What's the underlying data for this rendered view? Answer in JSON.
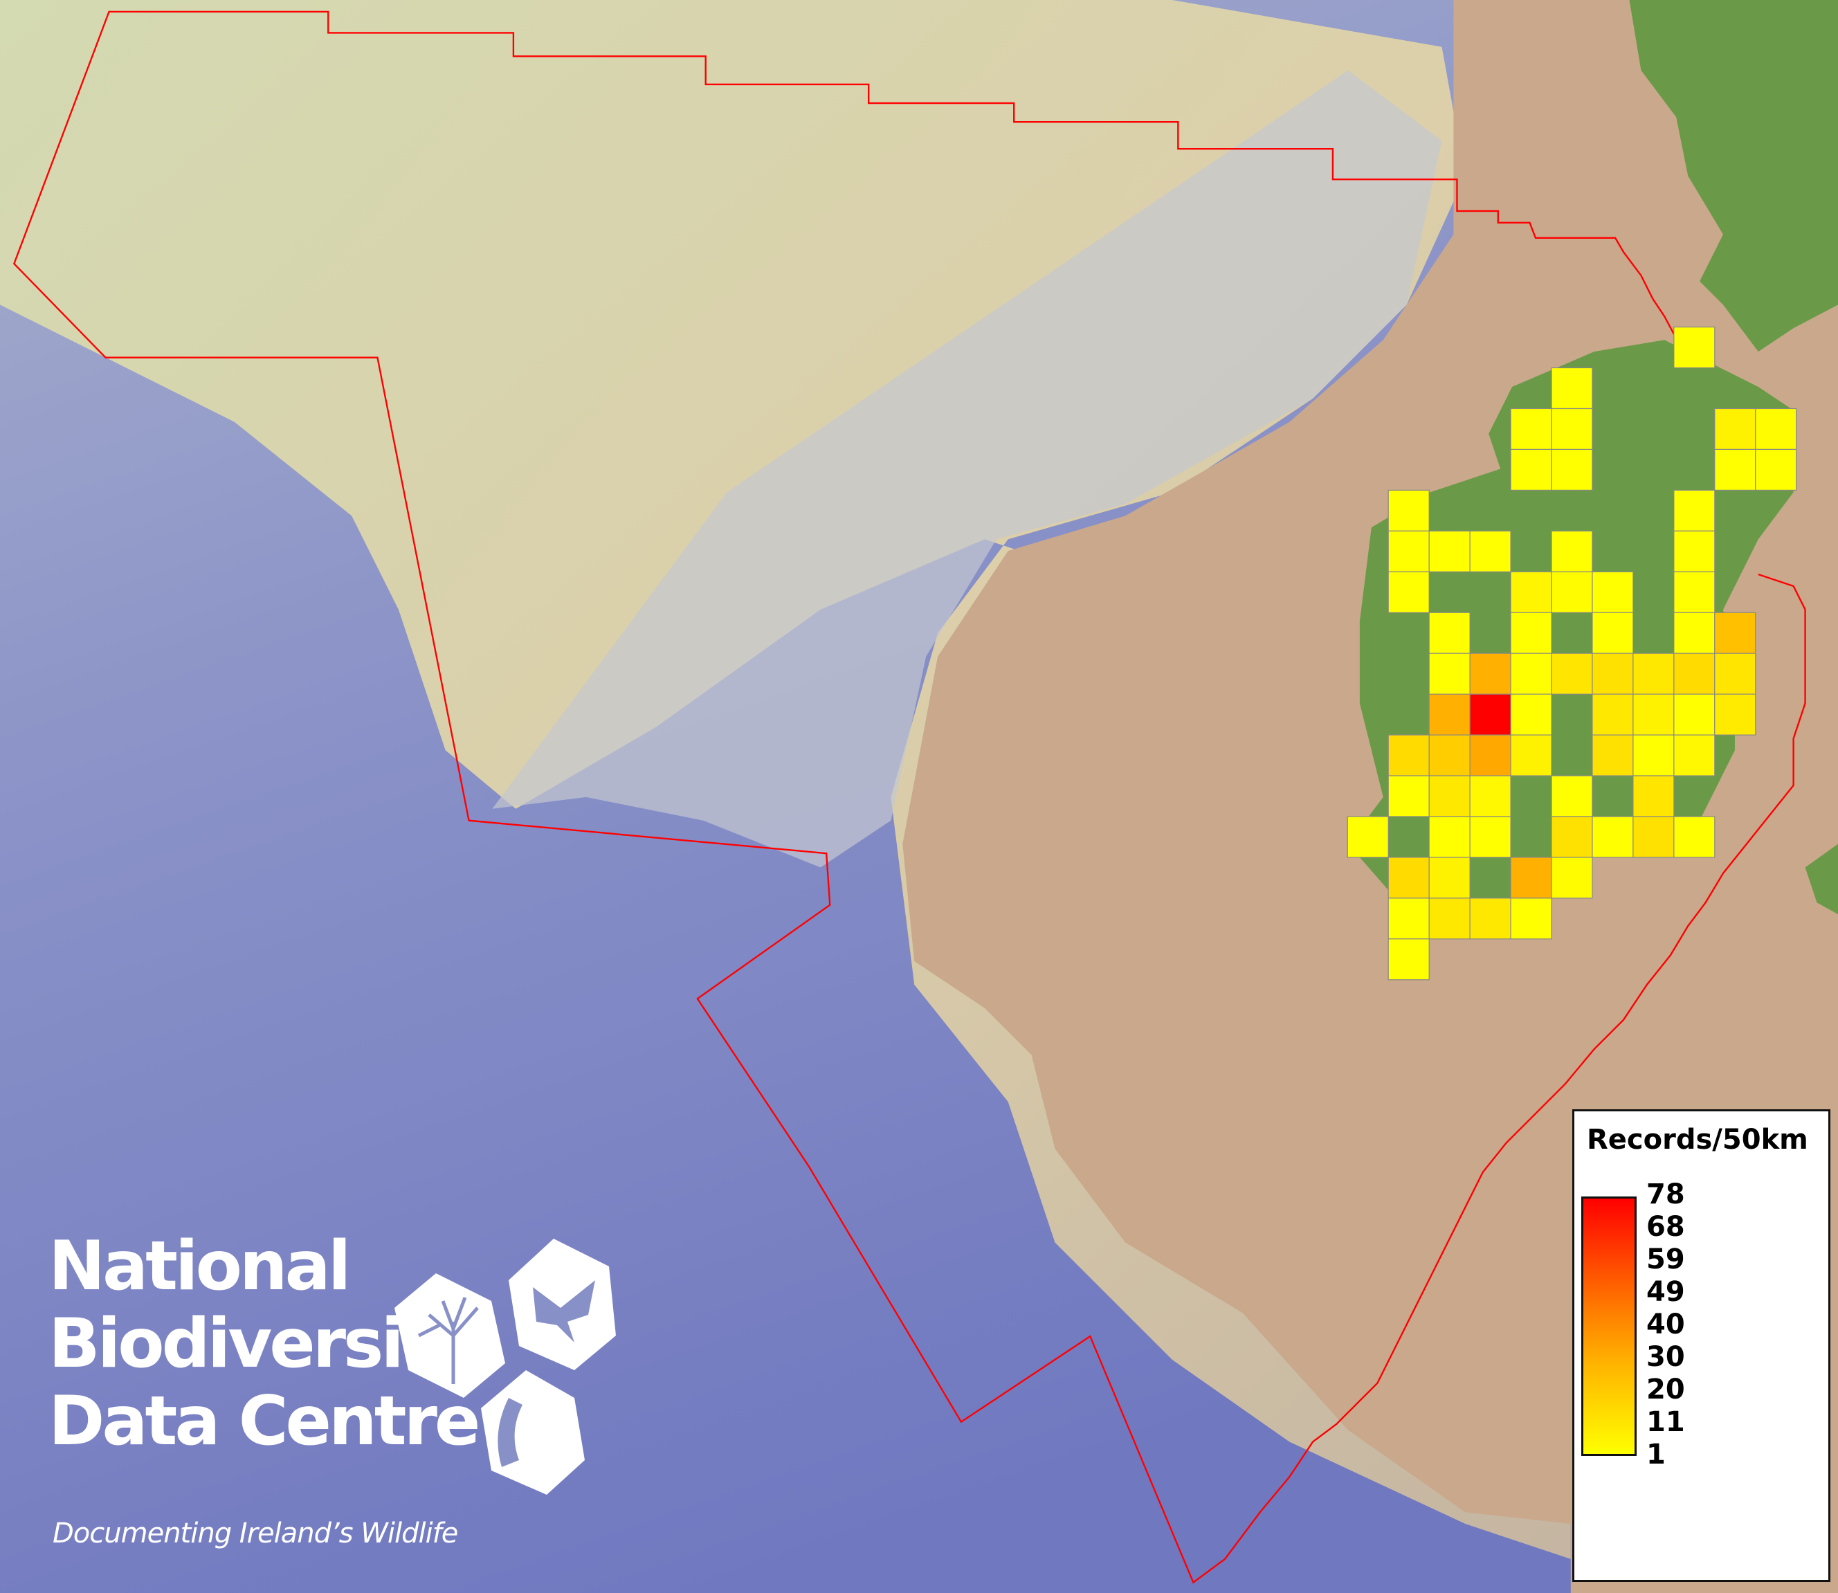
{
  "map": {
    "colors": {
      "ocean": "#7f88c6",
      "shelf": "#d8d8b0",
      "land": "#c9a88c",
      "country": "#6a9a48",
      "boundary": "#ff0000",
      "grid_border": "#888888"
    },
    "grid_cells": [
      [
        0,
        8,
        1
      ],
      [
        1,
        5,
        1
      ],
      [
        2,
        4,
        1
      ],
      [
        2,
        5,
        1
      ],
      [
        2,
        9,
        5
      ],
      [
        2,
        10,
        2
      ],
      [
        3,
        4,
        1
      ],
      [
        3,
        5,
        1
      ],
      [
        3,
        9,
        1
      ],
      [
        3,
        10,
        1
      ],
      [
        4,
        1,
        1
      ],
      [
        4,
        8,
        1
      ],
      [
        5,
        1,
        1
      ],
      [
        5,
        2,
        1
      ],
      [
        5,
        3,
        1
      ],
      [
        5,
        5,
        1
      ],
      [
        5,
        8,
        1
      ],
      [
        6,
        1,
        1
      ],
      [
        6,
        4,
        4
      ],
      [
        6,
        5,
        2
      ],
      [
        6,
        6,
        1
      ],
      [
        6,
        8,
        1
      ],
      [
        7,
        2,
        1
      ],
      [
        7,
        4,
        1
      ],
      [
        7,
        6,
        1
      ],
      [
        7,
        8,
        1
      ],
      [
        7,
        9,
        20
      ],
      [
        8,
        2,
        1
      ],
      [
        8,
        3,
        25
      ],
      [
        8,
        4,
        1
      ],
      [
        8,
        5,
        9
      ],
      [
        8,
        6,
        10
      ],
      [
        8,
        7,
        8
      ],
      [
        8,
        8,
        12
      ],
      [
        8,
        9,
        9
      ],
      [
        9,
        2,
        25
      ],
      [
        9,
        3,
        78
      ],
      [
        9,
        4,
        1
      ],
      [
        9,
        6,
        8
      ],
      [
        9,
        7,
        5
      ],
      [
        9,
        8,
        1
      ],
      [
        9,
        9,
        7
      ],
      [
        10,
        1,
        12
      ],
      [
        10,
        2,
        16
      ],
      [
        10,
        3,
        27
      ],
      [
        10,
        4,
        5
      ],
      [
        10,
        6,
        10
      ],
      [
        10,
        7,
        1
      ],
      [
        10,
        8,
        3
      ],
      [
        11,
        1,
        1
      ],
      [
        11,
        2,
        8
      ],
      [
        11,
        3,
        3
      ],
      [
        11,
        5,
        1
      ],
      [
        11,
        7,
        9
      ],
      [
        12,
        0,
        1
      ],
      [
        12,
        2,
        1
      ],
      [
        12,
        3,
        1
      ],
      [
        12,
        5,
        10
      ],
      [
        12,
        6,
        1
      ],
      [
        12,
        7,
        10
      ],
      [
        12,
        8,
        1
      ],
      [
        13,
        1,
        12
      ],
      [
        13,
        2,
        5
      ],
      [
        13,
        4,
        25
      ],
      [
        13,
        5,
        2
      ],
      [
        14,
        1,
        1
      ],
      [
        14,
        2,
        8
      ],
      [
        14,
        3,
        8
      ],
      [
        14,
        4,
        1
      ],
      [
        15,
        1,
        1
      ]
    ]
  },
  "legend": {
    "title": "Records/50km",
    "min": 1,
    "max": 78,
    "ticks": [
      "78",
      "68",
      "59",
      "49",
      "40",
      "30",
      "20",
      "11",
      "1"
    ],
    "colors": {
      "low": "#ffff00",
      "high": "#ff0000"
    }
  },
  "logo": {
    "line1": "National",
    "line2": "Biodiversity",
    "line3": "Data Centre",
    "tagline": "Documenting Ireland’s Wildlife",
    "icons": [
      "tree-icon",
      "butterfly-icon",
      "seahorse-icon"
    ]
  }
}
